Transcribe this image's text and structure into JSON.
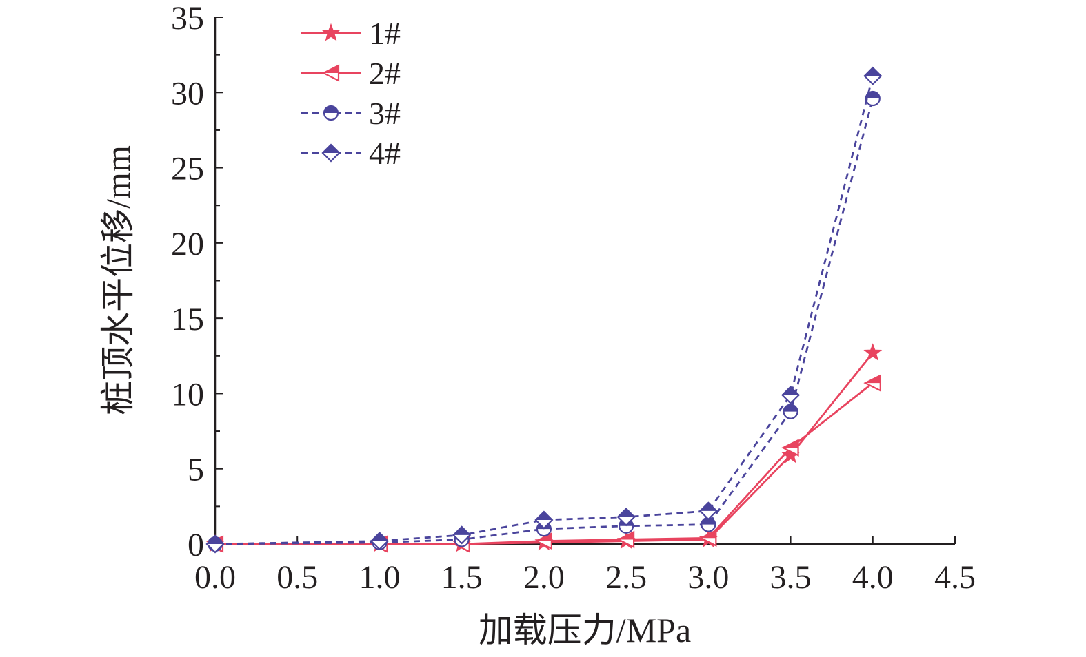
{
  "chart_data": {
    "type": "line",
    "xlabel": "加载压力/MPa",
    "ylabel": "桩顶水平位移/mm",
    "xlim": [
      0,
      4.5
    ],
    "ylim": [
      0,
      35
    ],
    "x_ticks": [
      "0.0",
      "0.5",
      "1.0",
      "1.5",
      "2.0",
      "2.5",
      "3.0",
      "3.5",
      "4.0",
      "4.5"
    ],
    "y_ticks": [
      "0",
      "5",
      "10",
      "15",
      "20",
      "25",
      "30",
      "35"
    ],
    "legend_position": "top-left",
    "x": [
      0.0,
      1.0,
      1.5,
      2.0,
      2.5,
      3.0,
      3.5,
      4.0
    ],
    "series": [
      {
        "name": "1#",
        "color": "#e8445f",
        "marker": "star",
        "dashed": false,
        "values": [
          0.0,
          0.0,
          0.0,
          0.1,
          0.2,
          0.3,
          5.9,
          12.7
        ]
      },
      {
        "name": "2#",
        "color": "#e8445f",
        "marker": "triangle-left",
        "dashed": false,
        "values": [
          0.0,
          0.0,
          0.0,
          0.2,
          0.3,
          0.4,
          6.4,
          10.7
        ]
      },
      {
        "name": "3#",
        "color": "#4a449c",
        "marker": "half-circle",
        "dashed": true,
        "values": [
          0.0,
          0.1,
          0.3,
          1.0,
          1.2,
          1.3,
          8.8,
          29.6
        ]
      },
      {
        "name": "4#",
        "color": "#4a449c",
        "marker": "half-diamond",
        "dashed": true,
        "values": [
          0.0,
          0.2,
          0.6,
          1.6,
          1.8,
          2.2,
          9.9,
          31.1
        ]
      }
    ]
  }
}
